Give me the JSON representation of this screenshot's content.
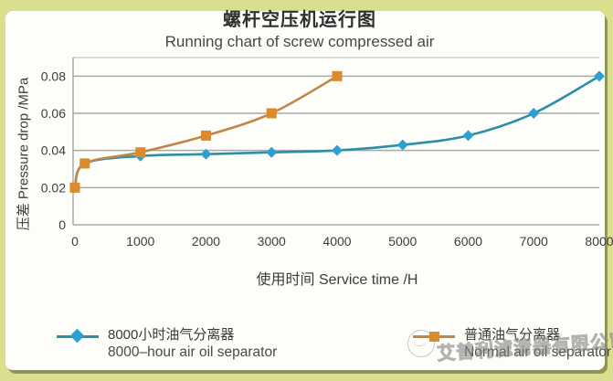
{
  "page_title_cn": "螺杆空压机运行图",
  "page_title_en": "Running chart of screw compressed air",
  "chart_data": {
    "type": "line",
    "title": "螺杆空压机运行图",
    "subtitle": "Running chart of screw compressed air",
    "xlabel": "使用时间 Service time /H",
    "ylabel": "压差 Pressure drop /MPa",
    "xlim": [
      0,
      8000
    ],
    "ylim": [
      0,
      0.09
    ],
    "xticks": [
      0,
      1000,
      2000,
      3000,
      4000,
      5000,
      6000,
      7000,
      8000
    ],
    "yticks": [
      0,
      0.02,
      0.04,
      0.06,
      0.08
    ],
    "grid": "horizontal",
    "legend_position": "bottom",
    "series": [
      {
        "name_cn": "8000小时油气分离器",
        "name_en": "8000–hour air oil separator",
        "marker": "diamond",
        "line_color": "#2b8fa6",
        "marker_color": "#2d9fd1",
        "x": [
          0,
          150,
          1000,
          2000,
          3000,
          4000,
          5000,
          6000,
          7000,
          8000
        ],
        "y": [
          0.02,
          0.033,
          0.037,
          0.038,
          0.039,
          0.04,
          0.043,
          0.048,
          0.06,
          0.08
        ]
      },
      {
        "name_cn": "普通油气分离器",
        "name_en": "Normal air oil separator",
        "marker": "square",
        "line_color": "#c08648",
        "marker_color": "#dd8a2c",
        "x": [
          0,
          150,
          1000,
          2000,
          3000,
          4000
        ],
        "y": [
          0.02,
          0.033,
          0.039,
          0.048,
          0.06,
          0.08
        ]
      }
    ]
  },
  "watermark": {
    "text": "艾普利滤清器有限公司"
  },
  "colors": {
    "outer_border": "#d9df8e",
    "card_bg": "#fdfdf9",
    "gridline": "#a9a9a9",
    "text": "#3d3d3d"
  }
}
